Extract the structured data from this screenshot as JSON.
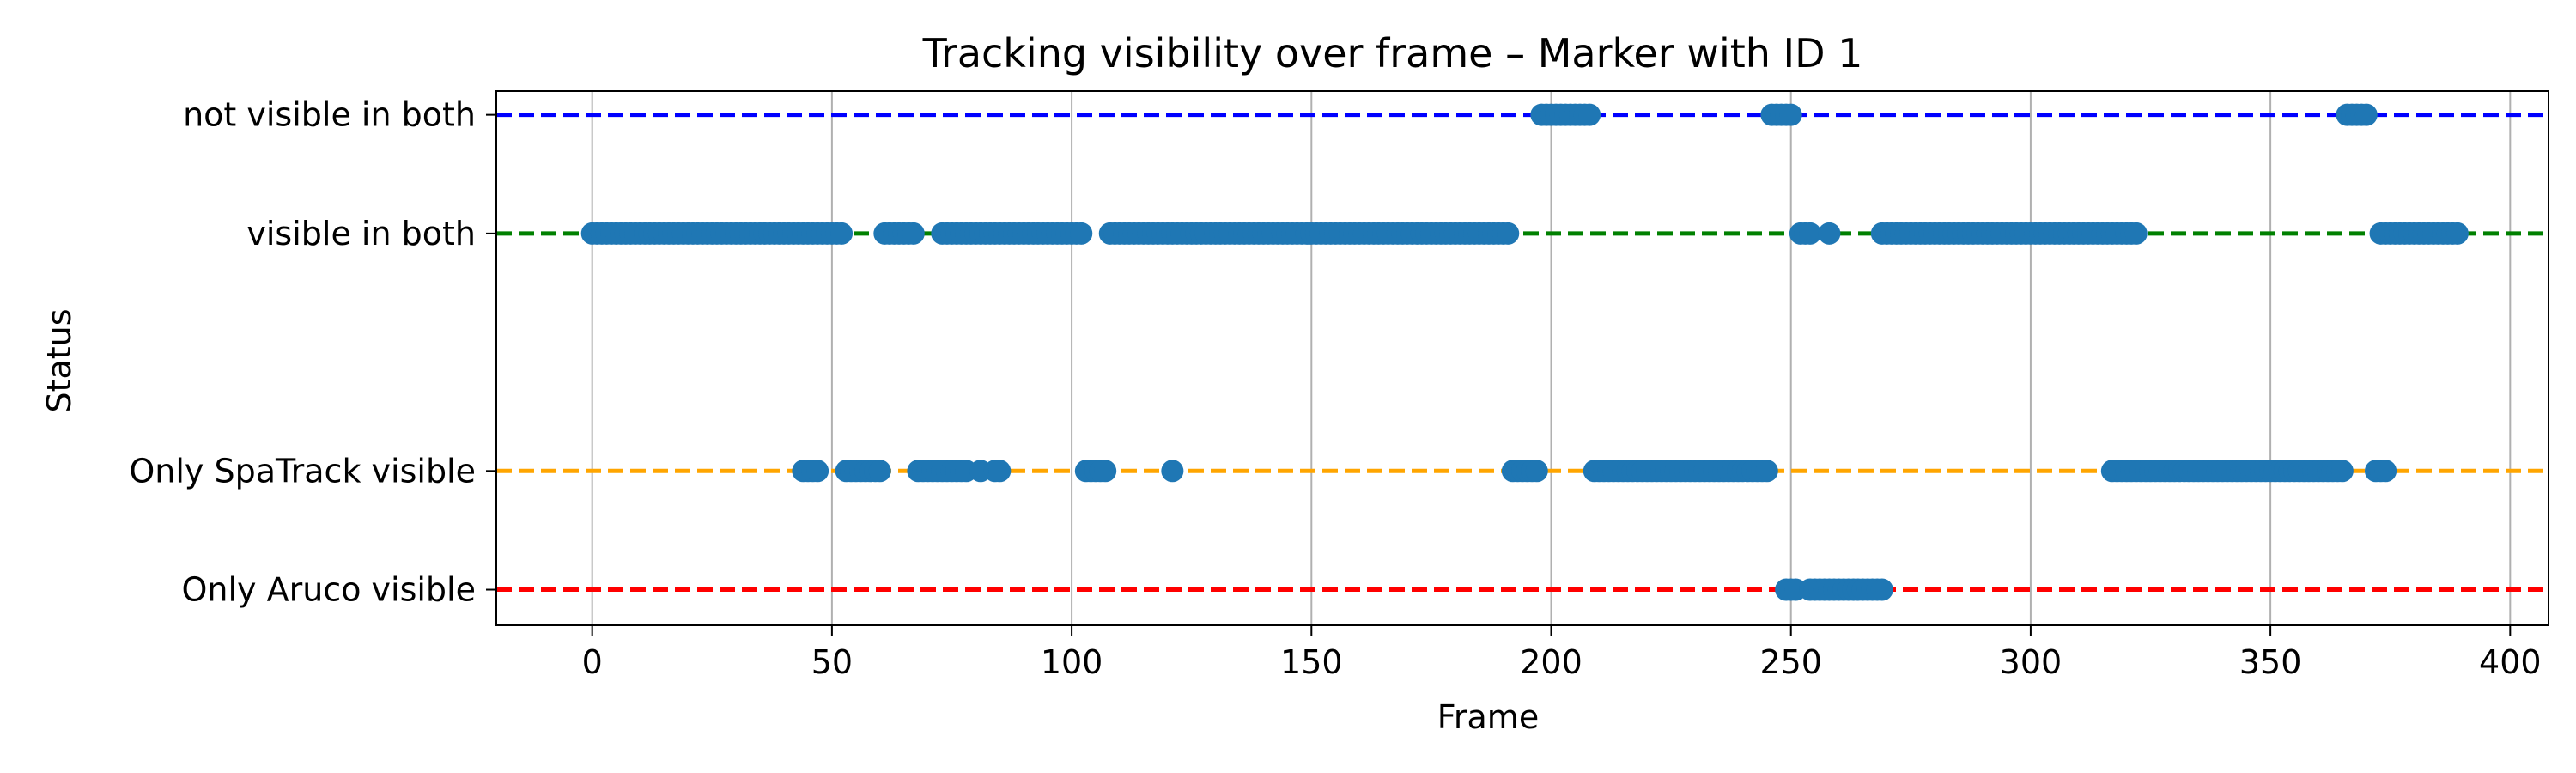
{
  "chart_data": {
    "type": "scatter",
    "title": "Tracking visibility over frame – Marker with ID 1",
    "xlabel": "Frame",
    "ylabel": "Status",
    "xlim": [
      -20,
      408
    ],
    "x_ticks": [
      0,
      50,
      100,
      150,
      200,
      250,
      300,
      350,
      400
    ],
    "grid": "vertical",
    "marker_color": "#1f77b4",
    "categories": [
      {
        "key": 1,
        "label": "not visible in both",
        "line_color": "#0000ff"
      },
      {
        "key": 0,
        "label": "visible in both",
        "line_color": "#008000"
      },
      {
        "key": -2,
        "label": "Only SpaTrack visible",
        "line_color": "#ffa500"
      },
      {
        "key": -3,
        "label": "Only Aruco visible",
        "line_color": "#ff0000"
      }
    ],
    "ylim": [
      -3.3,
      1.2
    ],
    "series": [
      {
        "status": "not visible in both",
        "ranges": [
          [
            198,
            208
          ],
          [
            246,
            250
          ],
          [
            366,
            370
          ]
        ]
      },
      {
        "status": "visible in both",
        "ranges": [
          [
            0,
            52
          ],
          [
            61,
            67
          ],
          [
            73,
            102
          ],
          [
            108,
            191
          ],
          [
            252,
            254
          ],
          [
            258,
            258
          ],
          [
            269,
            322
          ],
          [
            373,
            389
          ]
        ]
      },
      {
        "status": "Only SpaTrack visible",
        "ranges": [
          [
            44,
            47
          ],
          [
            53,
            60
          ],
          [
            68,
            78
          ],
          [
            81,
            81
          ],
          [
            84,
            85
          ],
          [
            103,
            107
          ],
          [
            121,
            121
          ],
          [
            192,
            197
          ],
          [
            209,
            245
          ],
          [
            317,
            365
          ],
          [
            372,
            374
          ]
        ]
      },
      {
        "status": "Only Aruco visible",
        "ranges": [
          [
            249,
            251
          ],
          [
            254,
            269
          ]
        ]
      }
    ]
  }
}
